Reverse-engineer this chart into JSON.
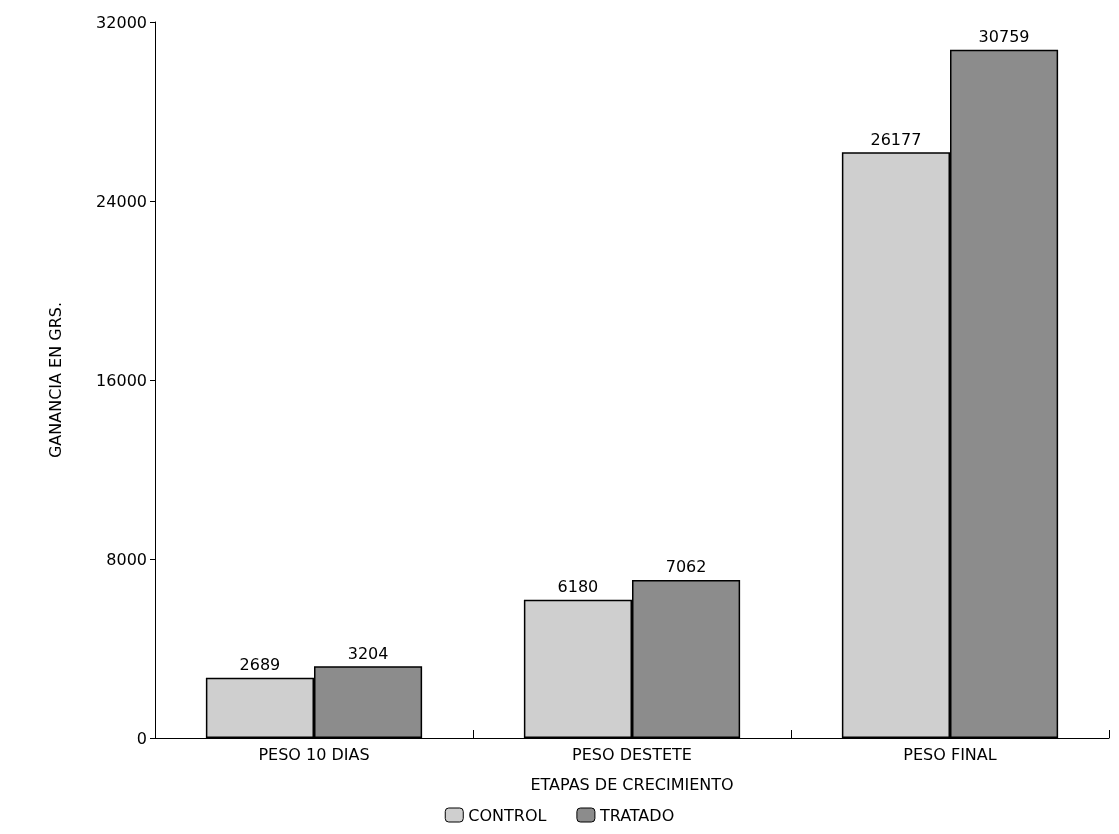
{
  "chart_data": {
    "type": "bar",
    "xlabel": "ETAPAS DE CRECIMIENTO",
    "ylabel": "GANANCIA EN GRS.",
    "categories": [
      "PESO 10 DIAS",
      "PESO DESTETE",
      "PESO FINAL"
    ],
    "series": [
      {
        "name": "CONTROL",
        "color": "#cfcfcf",
        "values": [
          2689,
          6180,
          26177
        ]
      },
      {
        "name": "TRATADO",
        "color": "#8c8c8c",
        "values": [
          3204,
          7062,
          30759
        ]
      }
    ],
    "ylim": [
      0,
      32000
    ],
    "yticks": [
      0,
      8000,
      16000,
      24000,
      32000
    ],
    "data_labels": true,
    "grid": false,
    "legend": "bottom"
  }
}
